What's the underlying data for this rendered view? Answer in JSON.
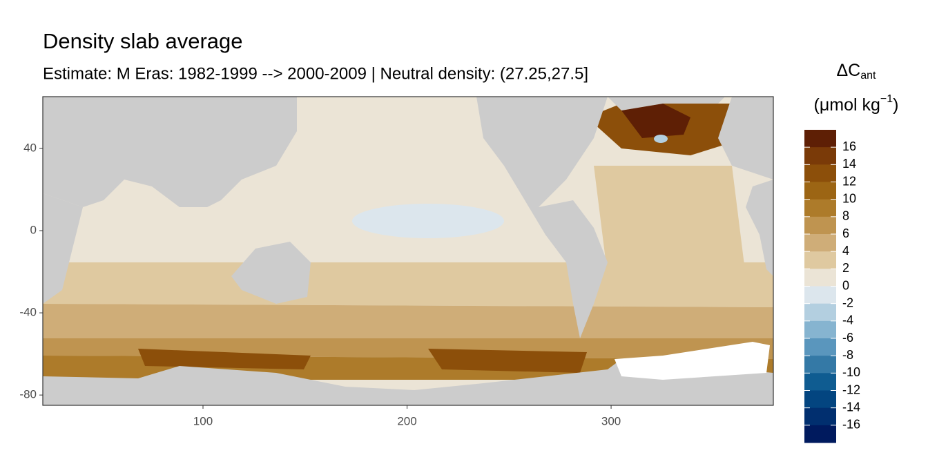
{
  "chart_data": {
    "type": "raster-map",
    "title": "Density slab average",
    "subtitle": "Estimate: M Eras: 1982-1999 --> 2000-2009 | Neutral density: (27.25,27.5]",
    "xlim": [
      21.5,
      379.5
    ],
    "xticks": [
      100,
      200,
      300
    ],
    "ylim": [
      -85,
      65.2
    ],
    "yticks": [
      40,
      0,
      -40,
      -80
    ],
    "land_color": "#cccccc",
    "legend": {
      "title_symbol": "ΔC",
      "title_sub": "ant",
      "unit_base": "(μmol kg",
      "unit_sup": "−1",
      "unit_end": ")",
      "lim": [
        -18,
        18
      ],
      "ticks": [
        16,
        14,
        12,
        10,
        8,
        6,
        4,
        2,
        0,
        -2,
        -4,
        -6,
        -8,
        -10,
        -12,
        -14,
        -16
      ],
      "colors": [
        "#5e1f05",
        "#7a3a08",
        "#8c4f0a",
        "#9c6514",
        "#ad7b2a",
        "#bf9450",
        "#cfad78",
        "#dfc9a0",
        "#ebe4d6",
        "#dce6ed",
        "#b3cfe0",
        "#86b4d0",
        "#5a96bd",
        "#3479a6",
        "#0f5c91",
        "#034580",
        "#012f6f",
        "#001a5e"
      ]
    }
  }
}
